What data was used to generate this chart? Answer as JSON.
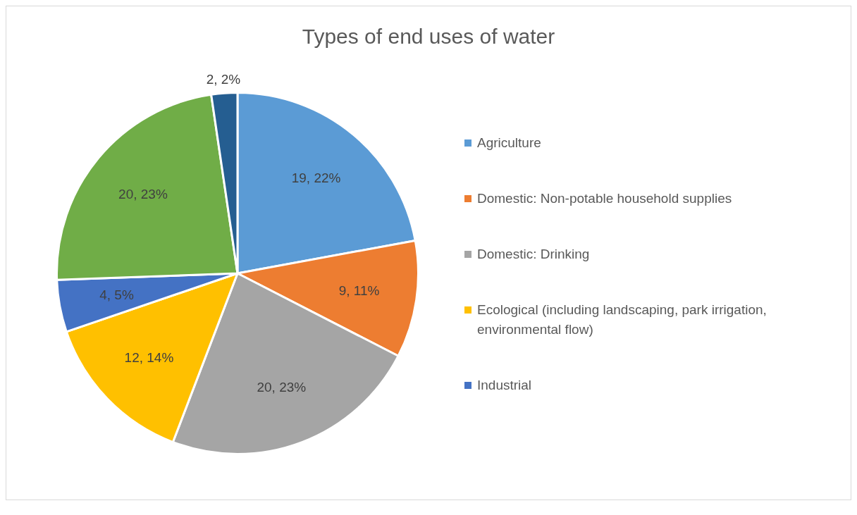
{
  "chart_data": {
    "type": "pie",
    "title": "Types of end uses of water",
    "categories": [
      "Agriculture",
      "Domestic: Non-potable household supplies",
      "Domestic: Drinking",
      "Ecological (including landscaping, park irrigation, environmental flow)",
      "Industrial",
      null,
      null
    ],
    "values": [
      19,
      9,
      20,
      12,
      4,
      20,
      2
    ],
    "colors": [
      "#5b9bd5",
      "#ed7d31",
      "#a5a5a5",
      "#ffc000",
      "#4472c4",
      "#70ad47",
      "#255e91"
    ],
    "value_labels": [
      "19, 22%",
      "9, 11%",
      "20, 23%",
      "12, 14%",
      "4, 5%",
      "20, 23%",
      "2, 2%"
    ],
    "legend": "right"
  }
}
